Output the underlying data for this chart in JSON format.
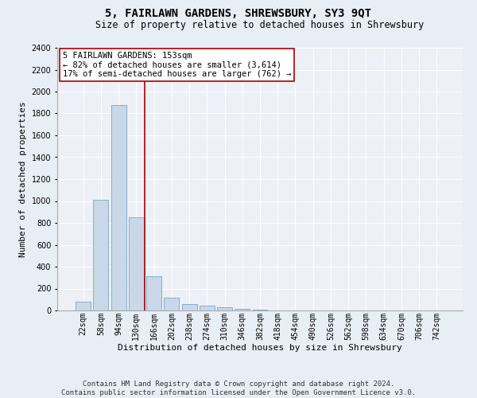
{
  "title": "5, FAIRLAWN GARDENS, SHREWSBURY, SY3 9QT",
  "subtitle": "Size of property relative to detached houses in Shrewsbury",
  "xlabel": "Distribution of detached houses by size in Shrewsbury",
  "ylabel": "Number of detached properties",
  "footer_line1": "Contains HM Land Registry data © Crown copyright and database right 2024.",
  "footer_line2": "Contains public sector information licensed under the Open Government Licence v3.0.",
  "categories": [
    "22sqm",
    "58sqm",
    "94sqm",
    "130sqm",
    "166sqm",
    "202sqm",
    "238sqm",
    "274sqm",
    "310sqm",
    "346sqm",
    "382sqm",
    "418sqm",
    "454sqm",
    "490sqm",
    "526sqm",
    "562sqm",
    "598sqm",
    "634sqm",
    "670sqm",
    "706sqm",
    "742sqm"
  ],
  "values": [
    80,
    1010,
    1880,
    850,
    310,
    115,
    55,
    42,
    30,
    15,
    5,
    3,
    2,
    1,
    1,
    0,
    0,
    0,
    0,
    0,
    0
  ],
  "bar_color": "#c8d8e8",
  "bar_edge_color": "#6699bb",
  "highlight_line_color": "#aa0000",
  "annotation_text": "5 FAIRLAWN GARDENS: 153sqm\n← 82% of detached houses are smaller (3,614)\n17% of semi-detached houses are larger (762) →",
  "annotation_box_color": "#ffffff",
  "annotation_box_edge": "#aa0000",
  "ylim": [
    0,
    2400
  ],
  "yticks": [
    0,
    200,
    400,
    600,
    800,
    1000,
    1200,
    1400,
    1600,
    1800,
    2000,
    2200,
    2400
  ],
  "bg_color": "#e8eef5",
  "plot_bg_color": "#edf1f7",
  "title_fontsize": 10,
  "subtitle_fontsize": 8.5,
  "axis_label_fontsize": 8,
  "tick_fontsize": 7,
  "annotation_fontsize": 7.5,
  "footer_fontsize": 6.5
}
